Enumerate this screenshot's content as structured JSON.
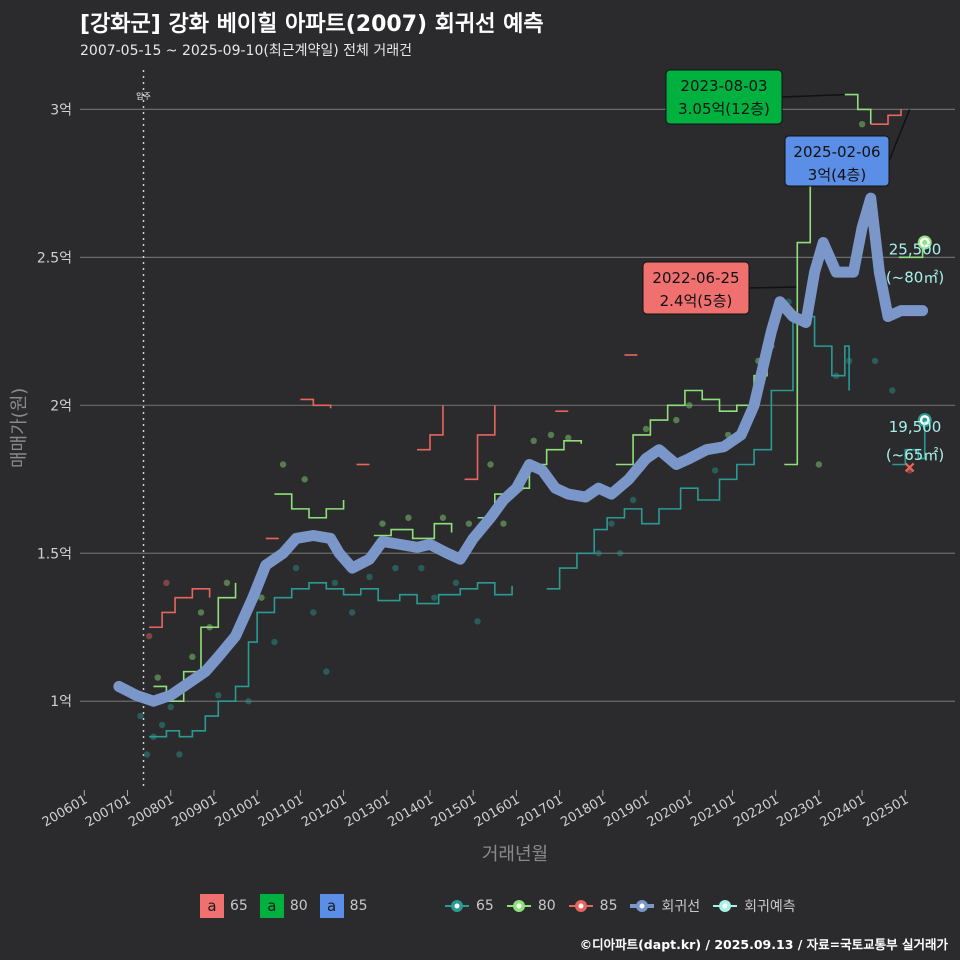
{
  "title": "[강화군] 강화 베이힐 아파트(2007) 회귀선 예측",
  "subtitle": "2007-05-15 ~ 2025-09-10(최근계약일) 전체 거래건",
  "footer": "©디아파트(dapt.kr) / 2025.09.13 / 자료=국토교통부 실거래가",
  "chart_data": {
    "type": "line",
    "xlabel": "거래년월",
    "ylabel": "매매가(원)",
    "x_ticks": [
      "200601",
      "200701",
      "200801",
      "200901",
      "201001",
      "201101",
      "201201",
      "201301",
      "201401",
      "201501",
      "201601",
      "201701",
      "201801",
      "201901",
      "202001",
      "202101",
      "202201",
      "202301",
      "202401",
      "202501"
    ],
    "xlim": [
      2005.9,
      2026.15
    ],
    "y_ticks": [
      {
        "value": 1.0,
        "label": "1억"
      },
      {
        "value": 1.5,
        "label": "1.5억"
      },
      {
        "value": 2.0,
        "label": "2억"
      },
      {
        "value": 2.5,
        "label": "2.5억"
      },
      {
        "value": 3.0,
        "label": "3억"
      }
    ],
    "ylim": [
      0.7,
      3.15
    ],
    "unit": "억원",
    "vline": {
      "x": 2007.37,
      "label": "입주"
    },
    "colors": {
      "65": "#2a9a93",
      "80": "#8ee07a",
      "85": "#e8655e",
      "regression": "#7b97c9",
      "forecast": "#a8f0ea"
    },
    "series": [
      {
        "name": "65",
        "type": "step",
        "points": [
          [
            2007.5,
            0.88
          ],
          [
            2007.9,
            0.9
          ],
          [
            2008.2,
            0.88
          ],
          [
            2008.5,
            0.9
          ],
          [
            2008.8,
            0.95
          ],
          [
            2009.1,
            1.0
          ],
          [
            2009.5,
            1.05
          ],
          [
            2009.8,
            1.2
          ],
          [
            2010.0,
            1.3
          ],
          [
            2010.4,
            1.35
          ],
          [
            2010.8,
            1.38
          ],
          [
            2011.2,
            1.4
          ],
          [
            2011.6,
            1.38
          ],
          [
            2012.0,
            1.36
          ],
          [
            2012.4,
            1.38
          ],
          [
            2012.8,
            1.34
          ],
          [
            2013.3,
            1.36
          ],
          [
            2013.7,
            1.33
          ],
          [
            2014.2,
            1.36
          ],
          [
            2014.7,
            1.38
          ],
          [
            2015.1,
            1.4
          ],
          [
            2015.5,
            1.36
          ],
          [
            2015.9,
            1.39
          ],
          [
            null,
            null
          ],
          [
            2016.7,
            1.38
          ],
          [
            2017.0,
            1.45
          ],
          [
            2017.4,
            1.5
          ],
          [
            2017.8,
            1.58
          ],
          [
            2018.1,
            1.62
          ],
          [
            2018.5,
            1.65
          ],
          [
            2018.9,
            1.6
          ],
          [
            2019.3,
            1.65
          ],
          [
            2019.8,
            1.72
          ],
          [
            2020.2,
            1.68
          ],
          [
            2020.7,
            1.75
          ],
          [
            2021.1,
            1.8
          ],
          [
            2021.5,
            1.85
          ],
          [
            2021.9,
            2.05
          ],
          [
            2022.4,
            2.3
          ],
          [
            2022.9,
            2.2
          ],
          [
            2023.3,
            2.1
          ],
          [
            2023.6,
            2.2
          ],
          [
            2023.7,
            2.05
          ],
          [
            null,
            null
          ],
          [
            2024.7,
            1.8
          ],
          [
            2025.0,
            1.85
          ],
          [
            2025.3,
            1.82
          ],
          [
            2025.45,
            1.95
          ]
        ]
      },
      {
        "name": "80",
        "type": "step",
        "points": [
          [
            2007.6,
            1.05
          ],
          [
            2007.9,
            1.0
          ],
          [
            2008.3,
            1.1
          ],
          [
            2008.7,
            1.25
          ],
          [
            2009.1,
            1.35
          ],
          [
            2009.5,
            1.4
          ],
          [
            null,
            null
          ],
          [
            2010.4,
            1.7
          ],
          [
            2010.8,
            1.65
          ],
          [
            2011.2,
            1.62
          ],
          [
            2011.6,
            1.65
          ],
          [
            2012.0,
            1.68
          ],
          [
            null,
            null
          ],
          [
            2012.7,
            1.56
          ],
          [
            2013.1,
            1.58
          ],
          [
            2013.6,
            1.55
          ],
          [
            2014.1,
            1.6
          ],
          [
            2014.5,
            1.57
          ],
          [
            null,
            null
          ],
          [
            2015.1,
            1.62
          ],
          [
            2015.5,
            1.7
          ],
          [
            2015.9,
            1.72
          ],
          [
            2016.3,
            1.8
          ],
          [
            2016.7,
            1.85
          ],
          [
            2017.1,
            1.88
          ],
          [
            2017.5,
            1.87
          ],
          [
            null,
            null
          ],
          [
            2018.3,
            1.8
          ],
          [
            2018.7,
            1.9
          ],
          [
            2019.1,
            1.95
          ],
          [
            2019.5,
            2.0
          ],
          [
            2019.9,
            2.05
          ],
          [
            2020.3,
            2.02
          ],
          [
            2020.7,
            1.98
          ],
          [
            2021.1,
            2.0
          ],
          [
            2021.5,
            2.1
          ],
          [
            2021.8,
            2.18
          ],
          [
            null,
            null
          ],
          [
            2022.2,
            1.8
          ],
          [
            2022.5,
            2.55
          ],
          [
            2022.8,
            2.9
          ],
          [
            null,
            null
          ],
          [
            2023.6,
            3.05
          ],
          [
            2023.9,
            3.0
          ],
          [
            2024.2,
            2.95
          ],
          [
            null,
            null
          ],
          [
            2024.85,
            2.5
          ],
          [
            2025.15,
            2.5
          ],
          [
            2025.4,
            2.55
          ]
        ]
      },
      {
        "name": "85",
        "type": "step",
        "points": [
          [
            2007.5,
            1.25
          ],
          [
            2007.8,
            1.3
          ],
          [
            2008.1,
            1.35
          ],
          [
            2008.5,
            1.38
          ],
          [
            2008.9,
            1.35
          ],
          [
            null,
            null
          ],
          [
            2010.2,
            1.55
          ],
          [
            2010.5,
            1.55
          ],
          [
            null,
            null
          ],
          [
            2011.0,
            2.02
          ],
          [
            2011.3,
            2.0
          ],
          [
            2011.7,
            1.99
          ],
          [
            null,
            null
          ],
          [
            2012.3,
            1.8
          ],
          [
            2012.6,
            1.8
          ],
          [
            null,
            null
          ],
          [
            2013.7,
            1.85
          ],
          [
            2014.0,
            1.9
          ],
          [
            2014.3,
            2.0
          ],
          [
            null,
            null
          ],
          [
            2014.8,
            1.75
          ],
          [
            2015.1,
            1.9
          ],
          [
            2015.5,
            2.0
          ],
          [
            null,
            null
          ],
          [
            2016.9,
            1.98
          ],
          [
            2017.2,
            1.98
          ],
          [
            null,
            null
          ],
          [
            2018.5,
            2.17
          ],
          [
            2018.8,
            2.17
          ],
          [
            null,
            null
          ],
          [
            2024.2,
            2.95
          ],
          [
            2024.6,
            2.98
          ],
          [
            2024.9,
            3.0
          ]
        ]
      },
      {
        "name": "회귀선",
        "type": "regression",
        "points": [
          [
            2006.8,
            1.05
          ],
          [
            2007.2,
            1.02
          ],
          [
            2007.6,
            1.0
          ],
          [
            2008.0,
            1.02
          ],
          [
            2008.4,
            1.06
          ],
          [
            2008.8,
            1.1
          ],
          [
            2009.1,
            1.15
          ],
          [
            2009.5,
            1.22
          ],
          [
            2009.9,
            1.35
          ],
          [
            2010.2,
            1.46
          ],
          [
            2010.6,
            1.5
          ],
          [
            2010.9,
            1.55
          ],
          [
            2011.3,
            1.56
          ],
          [
            2011.7,
            1.55
          ],
          [
            2011.9,
            1.5
          ],
          [
            2012.2,
            1.45
          ],
          [
            2012.6,
            1.48
          ],
          [
            2012.9,
            1.54
          ],
          [
            2013.3,
            1.53
          ],
          [
            2013.7,
            1.52
          ],
          [
            2014.0,
            1.53
          ],
          [
            2014.4,
            1.5
          ],
          [
            2014.7,
            1.48
          ],
          [
            2015.0,
            1.55
          ],
          [
            2015.4,
            1.62
          ],
          [
            2015.7,
            1.68
          ],
          [
            2016.0,
            1.72
          ],
          [
            2016.3,
            1.8
          ],
          [
            2016.6,
            1.78
          ],
          [
            2016.9,
            1.72
          ],
          [
            2017.2,
            1.7
          ],
          [
            2017.6,
            1.69
          ],
          [
            2017.9,
            1.72
          ],
          [
            2018.2,
            1.7
          ],
          [
            2018.6,
            1.75
          ],
          [
            2019.0,
            1.82
          ],
          [
            2019.3,
            1.85
          ],
          [
            2019.7,
            1.8
          ],
          [
            2020.0,
            1.82
          ],
          [
            2020.4,
            1.85
          ],
          [
            2020.8,
            1.86
          ],
          [
            2021.2,
            1.9
          ],
          [
            2021.5,
            2.0
          ],
          [
            2021.9,
            2.25
          ],
          [
            2022.1,
            2.35
          ],
          [
            2022.4,
            2.3
          ],
          [
            2022.7,
            2.28
          ],
          [
            2022.9,
            2.45
          ],
          [
            2023.1,
            2.55
          ],
          [
            2023.4,
            2.45
          ],
          [
            2023.8,
            2.45
          ],
          [
            2024.0,
            2.6
          ],
          [
            2024.2,
            2.7
          ],
          [
            2024.4,
            2.45
          ],
          [
            2024.6,
            2.3
          ],
          [
            2024.9,
            2.32
          ],
          [
            2025.4,
            2.32
          ]
        ]
      }
    ],
    "scatter": [
      [
        2007.3,
        0.95,
        "65"
      ],
      [
        2007.45,
        0.82,
        "65"
      ],
      [
        2007.5,
        1.22,
        "85"
      ],
      [
        2007.6,
        0.88,
        "65"
      ],
      [
        2007.7,
        1.08,
        "80"
      ],
      [
        2007.8,
        0.92,
        "65"
      ],
      [
        2007.9,
        1.4,
        "85"
      ],
      [
        2008.0,
        0.98,
        "65"
      ],
      [
        2008.2,
        0.82,
        "65"
      ],
      [
        2008.5,
        1.15,
        "80"
      ],
      [
        2008.7,
        1.3,
        "80"
      ],
      [
        2008.9,
        1.25,
        "80"
      ],
      [
        2009.1,
        1.02,
        "65"
      ],
      [
        2009.3,
        1.4,
        "80"
      ],
      [
        2009.5,
        1.22,
        "65"
      ],
      [
        2009.8,
        1.0,
        "65"
      ],
      [
        2010.1,
        1.35,
        "80"
      ],
      [
        2010.4,
        1.2,
        "65"
      ],
      [
        2010.6,
        1.8,
        "80"
      ],
      [
        2010.9,
        1.45,
        "65"
      ],
      [
        2011.1,
        1.75,
        "80"
      ],
      [
        2011.3,
        1.3,
        "65"
      ],
      [
        2011.6,
        1.1,
        "65"
      ],
      [
        2011.8,
        1.4,
        "65"
      ],
      [
        2012.2,
        1.3,
        "65"
      ],
      [
        2012.6,
        1.42,
        "65"
      ],
      [
        2012.9,
        1.6,
        "80"
      ],
      [
        2013.2,
        1.45,
        "65"
      ],
      [
        2013.5,
        1.62,
        "80"
      ],
      [
        2013.8,
        1.45,
        "65"
      ],
      [
        2014.1,
        1.35,
        "65"
      ],
      [
        2014.3,
        1.62,
        "80"
      ],
      [
        2014.6,
        1.4,
        "65"
      ],
      [
        2014.9,
        1.6,
        "80"
      ],
      [
        2015.1,
        1.27,
        "65"
      ],
      [
        2015.4,
        1.8,
        "80"
      ],
      [
        2015.7,
        1.6,
        "80"
      ],
      [
        2016.1,
        1.72,
        "80"
      ],
      [
        2016.4,
        1.88,
        "80"
      ],
      [
        2016.8,
        1.9,
        "80"
      ],
      [
        2017.2,
        1.89,
        "80"
      ],
      [
        2017.6,
        1.7,
        "65"
      ],
      [
        2017.9,
        1.5,
        "65"
      ],
      [
        2018.2,
        1.6,
        "65"
      ],
      [
        2018.4,
        1.5,
        "65"
      ],
      [
        2018.7,
        1.68,
        "65"
      ],
      [
        2019.0,
        1.92,
        "80"
      ],
      [
        2019.4,
        1.85,
        "65"
      ],
      [
        2019.7,
        1.95,
        "80"
      ],
      [
        2020.0,
        2.0,
        "80"
      ],
      [
        2020.3,
        1.85,
        "65"
      ],
      [
        2020.6,
        1.78,
        "65"
      ],
      [
        2020.9,
        1.9,
        "80"
      ],
      [
        2021.3,
        1.95,
        "80"
      ],
      [
        2021.6,
        2.15,
        "80"
      ],
      [
        2021.9,
        2.2,
        "80"
      ],
      [
        2022.3,
        2.35,
        "65"
      ],
      [
        2022.6,
        2.3,
        "65"
      ],
      [
        2022.8,
        2.4,
        "80"
      ],
      [
        2023.0,
        1.8,
        "80"
      ],
      [
        2023.4,
        2.1,
        "65"
      ],
      [
        2023.7,
        2.15,
        "65"
      ],
      [
        2024.0,
        2.95,
        "80"
      ],
      [
        2024.3,
        2.15,
        "65"
      ],
      [
        2024.7,
        2.05,
        "65"
      ],
      [
        2025.1,
        1.78,
        "85"
      ]
    ],
    "annotations": [
      {
        "date": "2023-08-03",
        "price": "3.05억(12층)",
        "series": "80",
        "x": 2023.59,
        "y": 3.05,
        "color": "#00b140"
      },
      {
        "date": "2025-02-06",
        "price": "3억(4층)",
        "series": "85",
        "x": 2025.1,
        "y": 3.0,
        "color": "#5b8ee6"
      },
      {
        "date": "2022-06-25",
        "price": "2.4억(5층)",
        "series": "65",
        "x": 2022.48,
        "y": 2.4,
        "color": "#f07070"
      }
    ],
    "forecast": [
      {
        "x": 2025.45,
        "y": 2.55,
        "value": "25,500",
        "area": "(~80㎡)",
        "color": "#8ee07a"
      },
      {
        "x": 2025.45,
        "y": 1.95,
        "value": "19,500",
        "area": "(~65㎡)",
        "color": "#2a9a93"
      }
    ]
  },
  "legend": {
    "fill": [
      {
        "key": "65",
        "glyph": "a",
        "color": "#f07070"
      },
      {
        "key": "80",
        "glyph": "a",
        "color": "#00b140"
      },
      {
        "key": "85",
        "glyph": "a",
        "color": "#5b8ee6"
      }
    ],
    "lines": [
      {
        "key": "65",
        "color": "#2a9a93"
      },
      {
        "key": "80",
        "color": "#8ee07a"
      },
      {
        "key": "85",
        "color": "#e8655e"
      },
      {
        "key": "회귀선",
        "color": "#7b97c9"
      },
      {
        "key": "회귀예측",
        "color": "#a8f0ea"
      }
    ]
  }
}
